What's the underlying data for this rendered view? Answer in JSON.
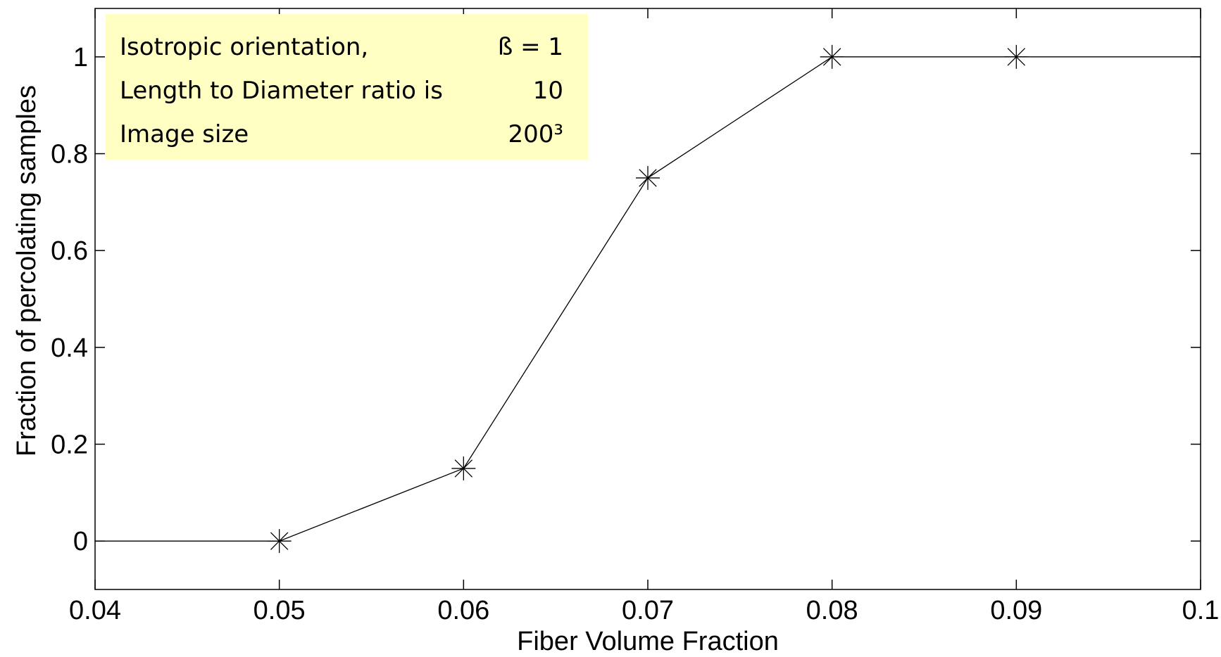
{
  "chart_data": {
    "type": "line",
    "title": "",
    "xlabel": "Fiber Volume Fraction",
    "ylabel": "Fraction of percolating samples",
    "xlim": [
      0.04,
      0.1
    ],
    "ylim": [
      -0.1,
      1.1
    ],
    "x_ticks": [
      0.04,
      0.05,
      0.06,
      0.07,
      0.08,
      0.09,
      0.1
    ],
    "x_tick_labels": [
      "0.04",
      "0.05",
      "0.06",
      "0.07",
      "0.08",
      "0.09",
      "0.1"
    ],
    "y_ticks": [
      0,
      0.2,
      0.4,
      0.6,
      0.8,
      1
    ],
    "y_tick_labels": [
      "0",
      "0.2",
      "0.4",
      "0.6",
      "0.8",
      "1"
    ],
    "grid": false,
    "series": [
      {
        "x": [
          0.04,
          0.05,
          0.06,
          0.07,
          0.08,
          0.09,
          0.1
        ],
        "y": [
          0,
          0,
          0.15,
          0.75,
          1,
          1,
          1
        ],
        "marker_x": [
          0.05,
          0.06,
          0.07,
          0.08,
          0.09
        ],
        "marker_y": [
          0,
          0.15,
          0.75,
          1,
          1
        ],
        "color": "#000000",
        "marker": "asterisk"
      }
    ],
    "annotation": {
      "position": "top-left",
      "background": "#ffffc4",
      "rows": [
        {
          "label": "Isotropic orientation,",
          "value": "ß = 1"
        },
        {
          "label": "Length to Diameter ratio is",
          "value": "10"
        },
        {
          "label": "Image size",
          "value": "200³"
        }
      ]
    }
  }
}
